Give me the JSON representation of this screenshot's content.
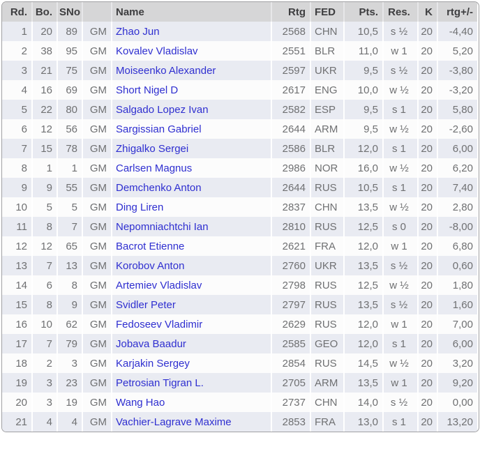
{
  "colors": {
    "header_bg": "#d6d6d7",
    "header_text": "#3e3e40",
    "row_odd_bg": "#e9ebf2",
    "row_even_bg": "#fcfcfc",
    "data_text": "#6f7072",
    "player_link": "#2f2fd0",
    "outer_border": "#a0a0a2"
  },
  "table": {
    "columns": [
      {
        "key": "rd",
        "label": "Rd.",
        "align": "right"
      },
      {
        "key": "bo",
        "label": "Bo.",
        "align": "right"
      },
      {
        "key": "sno",
        "label": "SNo",
        "align": "right"
      },
      {
        "key": "title",
        "label": "",
        "align": "right"
      },
      {
        "key": "name",
        "label": "Name",
        "align": "left"
      },
      {
        "key": "rtg",
        "label": "Rtg",
        "align": "right"
      },
      {
        "key": "fed",
        "label": "FED",
        "align": "left"
      },
      {
        "key": "pts",
        "label": "Pts.",
        "align": "right"
      },
      {
        "key": "res",
        "label": "Res.",
        "align": "center"
      },
      {
        "key": "k",
        "label": "K",
        "align": "right"
      },
      {
        "key": "rtgpm",
        "label": "rtg+/-",
        "align": "right"
      }
    ],
    "rows": [
      {
        "rd": "1",
        "bo": "20",
        "sno": "89",
        "title": "GM",
        "name": "Zhao Jun",
        "rtg": "2568",
        "fed": "CHN",
        "pts": "10,5",
        "res": "s ½",
        "k": "20",
        "rtgpm": "-4,40"
      },
      {
        "rd": "2",
        "bo": "38",
        "sno": "95",
        "title": "GM",
        "name": "Kovalev Vladislav",
        "rtg": "2551",
        "fed": "BLR",
        "pts": "11,0",
        "res": "w 1",
        "k": "20",
        "rtgpm": "5,20"
      },
      {
        "rd": "3",
        "bo": "21",
        "sno": "75",
        "title": "GM",
        "name": "Moiseenko Alexander",
        "rtg": "2597",
        "fed": "UKR",
        "pts": "9,5",
        "res": "s ½",
        "k": "20",
        "rtgpm": "-3,80"
      },
      {
        "rd": "4",
        "bo": "16",
        "sno": "69",
        "title": "GM",
        "name": "Short Nigel D",
        "rtg": "2617",
        "fed": "ENG",
        "pts": "10,0",
        "res": "w ½",
        "k": "20",
        "rtgpm": "-3,20"
      },
      {
        "rd": "5",
        "bo": "22",
        "sno": "80",
        "title": "GM",
        "name": "Salgado Lopez Ivan",
        "rtg": "2582",
        "fed": "ESP",
        "pts": "9,5",
        "res": "s 1",
        "k": "20",
        "rtgpm": "5,80"
      },
      {
        "rd": "6",
        "bo": "12",
        "sno": "56",
        "title": "GM",
        "name": "Sargissian Gabriel",
        "rtg": "2644",
        "fed": "ARM",
        "pts": "9,5",
        "res": "w ½",
        "k": "20",
        "rtgpm": "-2,60"
      },
      {
        "rd": "7",
        "bo": "15",
        "sno": "78",
        "title": "GM",
        "name": "Zhigalko Sergei",
        "rtg": "2586",
        "fed": "BLR",
        "pts": "12,0",
        "res": "s 1",
        "k": "20",
        "rtgpm": "6,00"
      },
      {
        "rd": "8",
        "bo": "1",
        "sno": "1",
        "title": "GM",
        "name": "Carlsen Magnus",
        "rtg": "2986",
        "fed": "NOR",
        "pts": "16,0",
        "res": "w ½",
        "k": "20",
        "rtgpm": "6,20"
      },
      {
        "rd": "9",
        "bo": "9",
        "sno": "55",
        "title": "GM",
        "name": "Demchenko Anton",
        "rtg": "2644",
        "fed": "RUS",
        "pts": "10,5",
        "res": "s 1",
        "k": "20",
        "rtgpm": "7,40"
      },
      {
        "rd": "10",
        "bo": "5",
        "sno": "5",
        "title": "GM",
        "name": "Ding Liren",
        "rtg": "2837",
        "fed": "CHN",
        "pts": "13,5",
        "res": "w ½",
        "k": "20",
        "rtgpm": "2,80"
      },
      {
        "rd": "11",
        "bo": "8",
        "sno": "7",
        "title": "GM",
        "name": "Nepomniachtchi Ian",
        "rtg": "2810",
        "fed": "RUS",
        "pts": "12,5",
        "res": "s 0",
        "k": "20",
        "rtgpm": "-8,00"
      },
      {
        "rd": "12",
        "bo": "12",
        "sno": "65",
        "title": "GM",
        "name": "Bacrot Etienne",
        "rtg": "2621",
        "fed": "FRA",
        "pts": "12,0",
        "res": "w 1",
        "k": "20",
        "rtgpm": "6,80"
      },
      {
        "rd": "13",
        "bo": "7",
        "sno": "13",
        "title": "GM",
        "name": "Korobov Anton",
        "rtg": "2760",
        "fed": "UKR",
        "pts": "13,5",
        "res": "s ½",
        "k": "20",
        "rtgpm": "0,60"
      },
      {
        "rd": "14",
        "bo": "6",
        "sno": "8",
        "title": "GM",
        "name": "Artemiev Vladislav",
        "rtg": "2798",
        "fed": "RUS",
        "pts": "12,5",
        "res": "w ½",
        "k": "20",
        "rtgpm": "1,80"
      },
      {
        "rd": "15",
        "bo": "8",
        "sno": "9",
        "title": "GM",
        "name": "Svidler Peter",
        "rtg": "2797",
        "fed": "RUS",
        "pts": "13,5",
        "res": "s ½",
        "k": "20",
        "rtgpm": "1,60"
      },
      {
        "rd": "16",
        "bo": "10",
        "sno": "62",
        "title": "GM",
        "name": "Fedoseev Vladimir",
        "rtg": "2629",
        "fed": "RUS",
        "pts": "12,0",
        "res": "w 1",
        "k": "20",
        "rtgpm": "7,00"
      },
      {
        "rd": "17",
        "bo": "7",
        "sno": "79",
        "title": "GM",
        "name": "Jobava Baadur",
        "rtg": "2585",
        "fed": "GEO",
        "pts": "12,0",
        "res": "s 1",
        "k": "20",
        "rtgpm": "6,00"
      },
      {
        "rd": "18",
        "bo": "2",
        "sno": "3",
        "title": "GM",
        "name": "Karjakin Sergey",
        "rtg": "2854",
        "fed": "RUS",
        "pts": "14,5",
        "res": "w ½",
        "k": "20",
        "rtgpm": "3,20"
      },
      {
        "rd": "19",
        "bo": "3",
        "sno": "23",
        "title": "GM",
        "name": "Petrosian Tigran L.",
        "rtg": "2705",
        "fed": "ARM",
        "pts": "13,5",
        "res": "w 1",
        "k": "20",
        "rtgpm": "9,20"
      },
      {
        "rd": "20",
        "bo": "3",
        "sno": "19",
        "title": "GM",
        "name": "Wang Hao",
        "rtg": "2737",
        "fed": "CHN",
        "pts": "14,0",
        "res": "s ½",
        "k": "20",
        "rtgpm": "0,00"
      },
      {
        "rd": "21",
        "bo": "4",
        "sno": "4",
        "title": "GM",
        "name": "Vachier-Lagrave Maxime",
        "rtg": "2853",
        "fed": "FRA",
        "pts": "13,0",
        "res": "s 1",
        "k": "20",
        "rtgpm": "13,20"
      }
    ]
  }
}
